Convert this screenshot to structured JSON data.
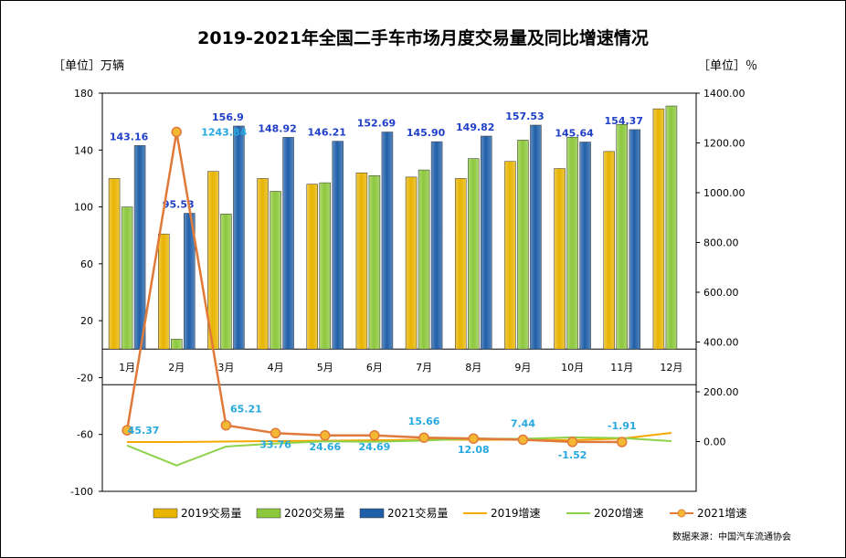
{
  "chart_data": {
    "type": "bar+line",
    "title": "2019-2021年全国二手车市场月度交易量及同比增速情况",
    "left_unit_label": "［单位］万辆",
    "right_unit_label": "［单位］％",
    "source": "数据来源：中国汽车流通协会",
    "left_axis": {
      "ticks": [
        180,
        140,
        100,
        60,
        20,
        -20,
        -60,
        -100
      ],
      "ylim": [
        -100,
        180
      ]
    },
    "right_axis": {
      "ticks": [
        "1400.00",
        "1200.00",
        "1000.00",
        "800.00",
        "600.00",
        "400.00",
        "200.00",
        "0.00"
      ],
      "ylim": [
        -200,
        1400
      ]
    },
    "categories": [
      "1月",
      "2月",
      "3月",
      "4月",
      "5月",
      "6月",
      "7月",
      "8月",
      "9月",
      "10月",
      "11月",
      "12月"
    ],
    "bar_series": [
      {
        "name": "2019交易量",
        "color": "#e8b400",
        "values": [
          120,
          81,
          125,
          120,
          116,
          124,
          121,
          120,
          132,
          127,
          139,
          169
        ]
      },
      {
        "name": "2020交易量",
        "color": "#8cc83c",
        "values": [
          100,
          7,
          95,
          111,
          117,
          122,
          126,
          134,
          147,
          149,
          158,
          171
        ]
      },
      {
        "name": "2021交易量",
        "color": "#1f5fa8",
        "values": [
          143.16,
          null,
          156.9,
          148.92,
          146.21,
          152.69,
          145.9,
          149.82,
          157.53,
          145.64,
          154.37,
          null
        ]
      }
    ],
    "bar_labels_2021": [
      "143.16",
      "95.53",
      "156.9",
      "148.92",
      "146.21",
      "152.69",
      "145.90",
      "149.82",
      "157.53",
      "145.64",
      "154.37"
    ],
    "line_series": [
      {
        "name": "2019增速",
        "color": "#f5a800",
        "values": [
          -2,
          -2,
          0,
          2,
          3,
          5,
          8,
          7,
          8,
          6,
          12,
          35
        ]
      },
      {
        "name": "2020增速",
        "color": "#8ed14a",
        "values": [
          -16,
          -96,
          -20,
          -8,
          1,
          -1,
          4,
          12,
          11,
          17,
          14,
          2
        ]
      },
      {
        "name": "2021增速",
        "color": "#e07a3a",
        "values": [
          45.37,
          1243.84,
          65.21,
          33.76,
          24.66,
          24.69,
          15.66,
          12.08,
          7.44,
          -1.52,
          -1.91,
          null
        ]
      }
    ],
    "growth_labels_2021": [
      "45.37",
      "1243.84",
      "65.21",
      "33.76",
      "24.66",
      "24.69",
      "15.66",
      "12.08",
      "7.44",
      "-1.52",
      "-1.91"
    ],
    "legend_position": "bottom"
  }
}
